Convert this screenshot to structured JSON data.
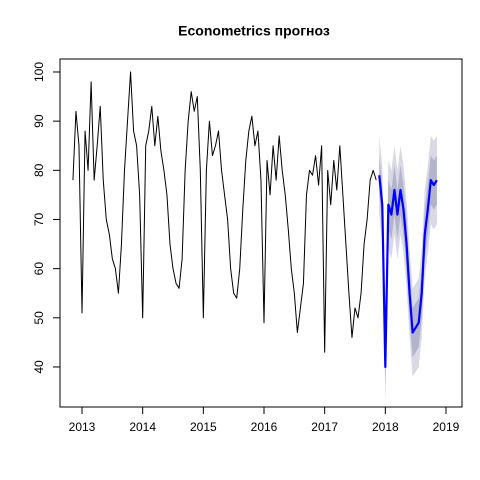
{
  "chart_data": {
    "type": "line",
    "title": "Econometrics прогноз",
    "xlim": [
      2012.637,
      2019.264
    ],
    "ylim": [
      31.86,
      102.64
    ],
    "xticks": [
      2013,
      2014,
      2015,
      2016,
      2017,
      2018,
      2019
    ],
    "yticks": [
      40,
      50,
      60,
      70,
      80,
      90,
      100
    ],
    "bands": [
      {
        "color": "#d9d9e5",
        "x": [
          2017.9,
          2017.95,
          2018.0,
          2018.05,
          2018.1,
          2018.15,
          2018.2,
          2018.25,
          2018.3,
          2018.35,
          2018.4,
          2018.45,
          2018.5,
          2018.55,
          2018.6,
          2018.65,
          2018.7,
          2018.75,
          2018.8,
          2018.85
        ],
        "lower": [
          71,
          65,
          33,
          64,
          62,
          67,
          62,
          67,
          63,
          56,
          46,
          38,
          39,
          40,
          46,
          58,
          63,
          69,
          68,
          69
        ],
        "upper": [
          87,
          81,
          47,
          82,
          80,
          85,
          80,
          85,
          81,
          74,
          64,
          56,
          57,
          58,
          64,
          76,
          81,
          87,
          86,
          87
        ]
      },
      {
        "color": "#b3b3cc",
        "x": [
          2017.9,
          2017.95,
          2018.0,
          2018.05,
          2018.1,
          2018.15,
          2018.2,
          2018.25,
          2018.3,
          2018.35,
          2018.4,
          2018.45,
          2018.5,
          2018.55,
          2018.6,
          2018.65,
          2018.7,
          2018.75,
          2018.8,
          2018.85
        ],
        "lower": [
          75,
          69,
          36,
          68,
          66,
          71,
          66,
          71,
          67,
          60,
          50,
          42,
          43,
          44,
          50,
          62,
          67,
          73,
          72,
          73
        ],
        "upper": [
          83,
          77,
          44,
          78,
          76,
          81,
          76,
          81,
          77,
          70,
          60,
          52,
          53,
          54,
          60,
          72,
          77,
          83,
          82,
          83
        ]
      }
    ],
    "series": [
      {
        "color": "#000000",
        "width": 1,
        "x": [
          2012.85,
          2012.9,
          2012.95,
          2013.0,
          2013.05,
          2013.1,
          2013.15,
          2013.2,
          2013.25,
          2013.3,
          2013.35,
          2013.4,
          2013.45,
          2013.5,
          2013.55,
          2013.6,
          2013.65,
          2013.7,
          2013.75,
          2013.8,
          2013.85,
          2013.9,
          2013.95,
          2014.0,
          2014.05,
          2014.1,
          2014.15,
          2014.2,
          2014.25,
          2014.3,
          2014.35,
          2014.4,
          2014.45,
          2014.5,
          2014.55,
          2014.6,
          2014.65,
          2014.7,
          2014.75,
          2014.8,
          2014.85,
          2014.9,
          2014.95,
          2015.0,
          2015.05,
          2015.1,
          2015.15,
          2015.2,
          2015.25,
          2015.3,
          2015.35,
          2015.4,
          2015.45,
          2015.5,
          2015.55,
          2015.6,
          2015.65,
          2015.7,
          2015.75,
          2015.8,
          2015.85,
          2015.9,
          2015.95,
          2016.0,
          2016.05,
          2016.1,
          2016.15,
          2016.2,
          2016.25,
          2016.3,
          2016.35,
          2016.4,
          2016.45,
          2016.5,
          2016.55,
          2016.6,
          2016.65,
          2016.7,
          2016.75,
          2016.8,
          2016.85,
          2016.9,
          2016.95,
          2017.0,
          2017.05,
          2017.1,
          2017.15,
          2017.2,
          2017.25,
          2017.3,
          2017.35,
          2017.4,
          2017.45,
          2017.5,
          2017.55,
          2017.6,
          2017.65,
          2017.7,
          2017.75,
          2017.8,
          2017.85
        ],
        "values": [
          78,
          92,
          85,
          51,
          88,
          80,
          98,
          78,
          85,
          93,
          78,
          70,
          67,
          62,
          60,
          55,
          65,
          80,
          90,
          100,
          88,
          85,
          75,
          50,
          85,
          88,
          93,
          85,
          91,
          84,
          80,
          75,
          65,
          60,
          57,
          56,
          62,
          80,
          90,
          96,
          92,
          95,
          80,
          50,
          80,
          90,
          83,
          85,
          88,
          80,
          75,
          70,
          60,
          55,
          54,
          60,
          72,
          82,
          88,
          91,
          85,
          88,
          78,
          49,
          82,
          75,
          85,
          78,
          87,
          80,
          75,
          68,
          60,
          55,
          47,
          52,
          57,
          75,
          80,
          79,
          83,
          77,
          85,
          43,
          80,
          73,
          82,
          76,
          85,
          75,
          65,
          55,
          46,
          52,
          50,
          55,
          65,
          70,
          78,
          80,
          78
        ]
      },
      {
        "color": "#0000ff",
        "width": 2.2,
        "x": [
          2017.9,
          2017.95,
          2018.0,
          2018.05,
          2018.1,
          2018.15,
          2018.2,
          2018.25,
          2018.3,
          2018.35,
          2018.4,
          2018.45,
          2018.5,
          2018.55,
          2018.6,
          2018.65,
          2018.7,
          2018.75,
          2018.8,
          2018.85
        ],
        "values": [
          79,
          73,
          40,
          73,
          71,
          76,
          71,
          76,
          72,
          65,
          55,
          47,
          48,
          49,
          55,
          67,
          72,
          78,
          77,
          78
        ]
      }
    ]
  }
}
